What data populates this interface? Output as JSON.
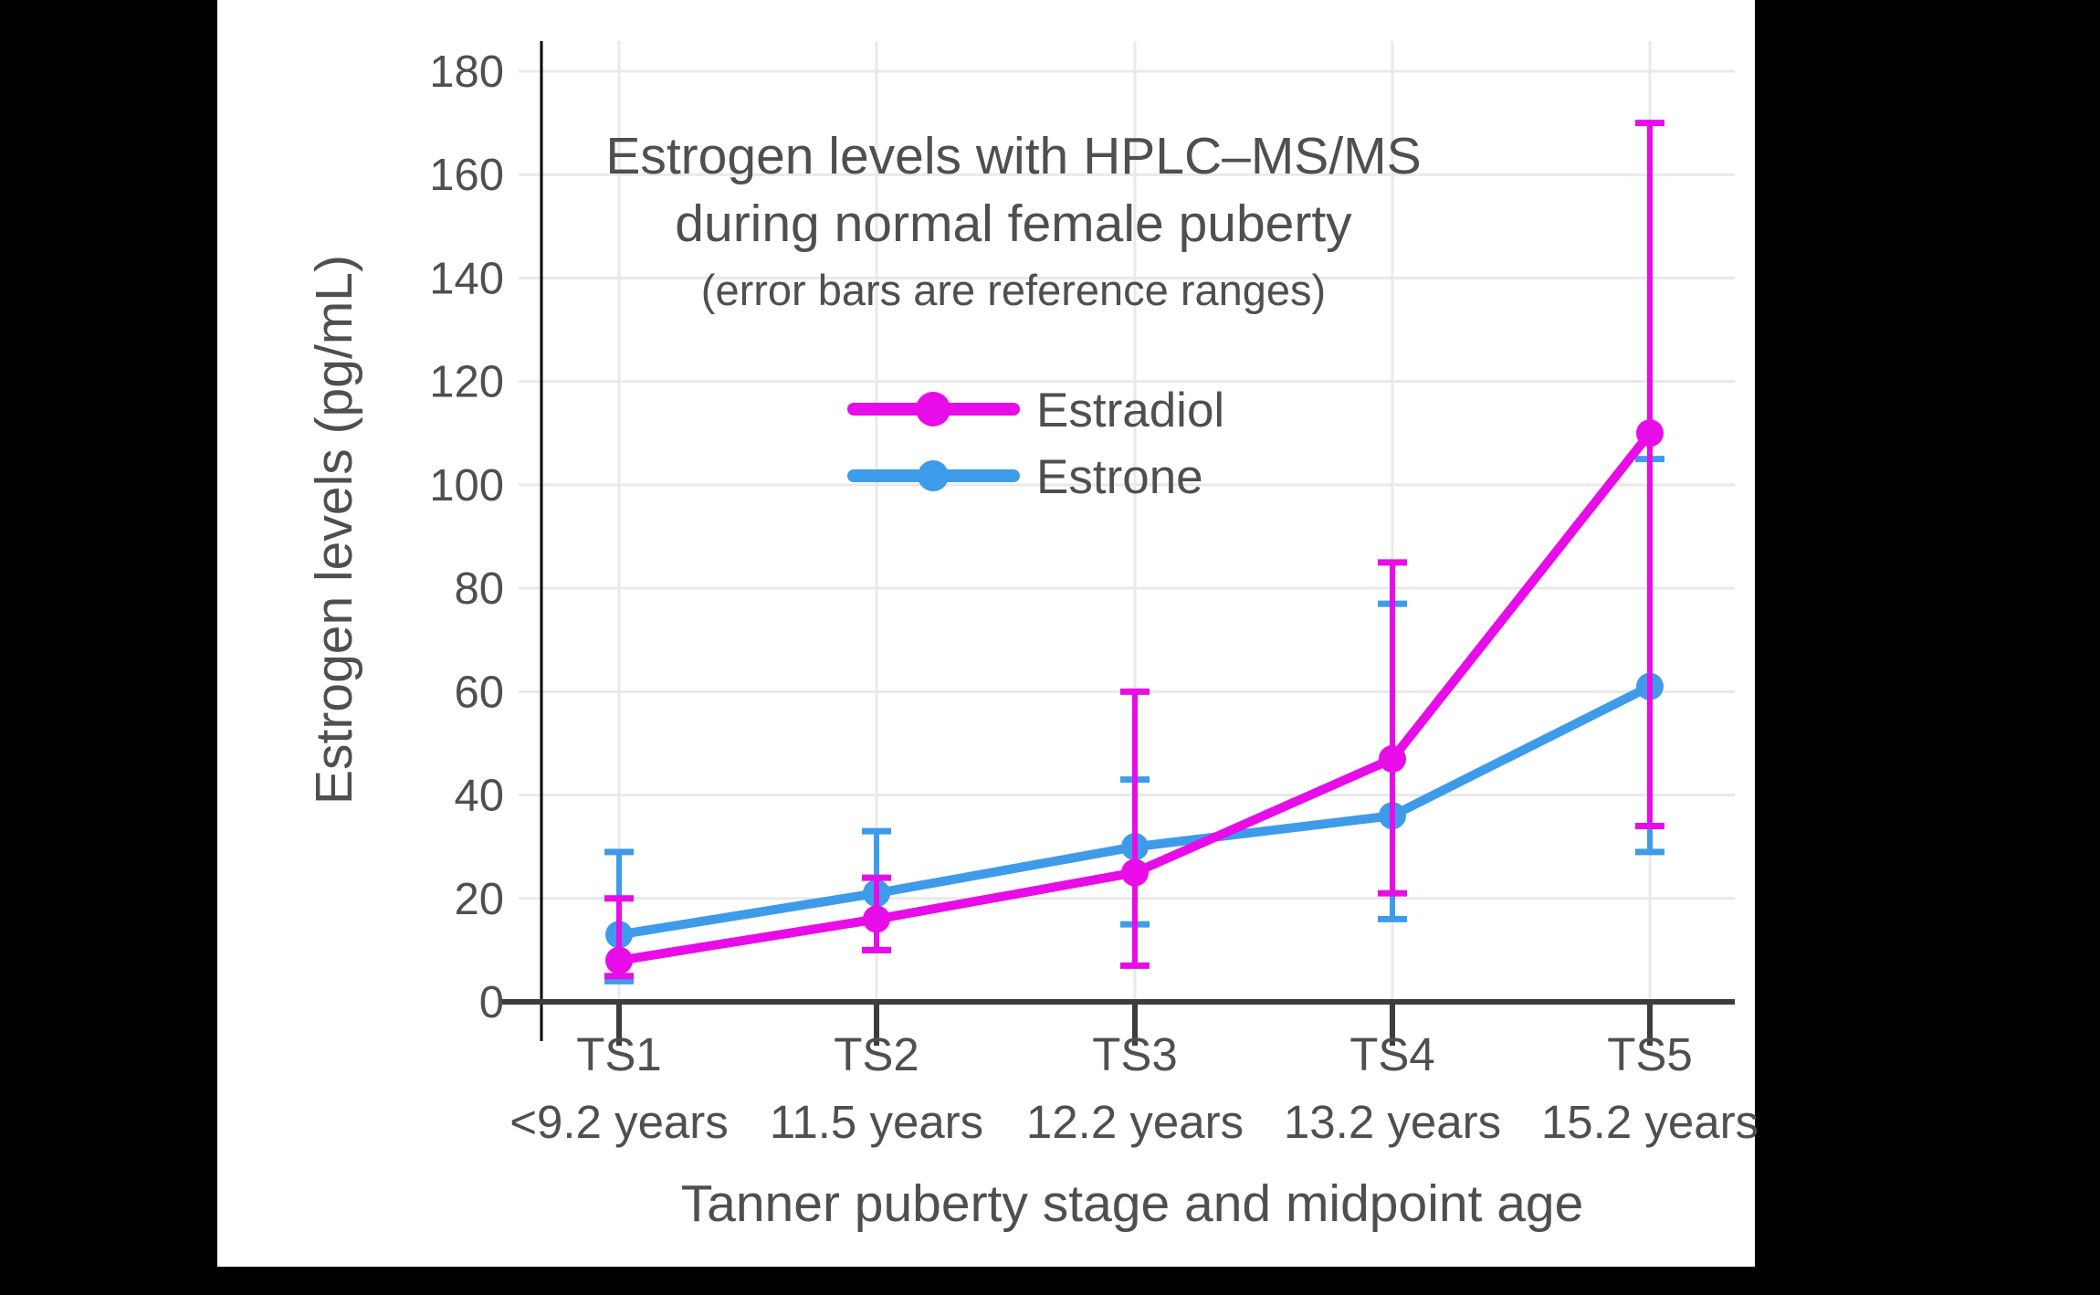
{
  "canvas": {
    "background": "#000000",
    "chart_background": "#ffffff",
    "text_color": "#4f4f4f",
    "grid_color": "#e9e9e9",
    "x_axis_color": "#3d3d3d",
    "y_axis_color": "#000000"
  },
  "legend": {
    "items": [
      {
        "label": "Estradiol",
        "color": "#E80CE8"
      },
      {
        "label": "Estrone",
        "color": "#3E9BE9"
      }
    ]
  },
  "chart_data": {
    "type": "line",
    "title": "Estrogen levels with HPLC–MS/MS during normal female puberty",
    "title_lines": [
      "Estrogen levels with HPLC–MS/MS",
      "during normal female puberty"
    ],
    "subtitle": "(error bars are reference ranges)",
    "xlabel": "Tanner puberty stage and midpoint age",
    "ylabel": "Estrogen levels (pg/mL)",
    "ylim": [
      0,
      190
    ],
    "yticks": [
      0,
      20,
      40,
      60,
      80,
      100,
      120,
      140,
      160,
      180
    ],
    "grid": true,
    "legend_position": "upper center inside plot",
    "categories": [
      "TS1",
      "TS2",
      "TS3",
      "TS4",
      "TS5"
    ],
    "category_ages": [
      "<9.2 years",
      "11.5 years",
      "12.2 years",
      "13.2 years",
      "15.2 years"
    ],
    "error_bars_meaning": "reference ranges",
    "series": [
      {
        "name": "Estrone",
        "color": "#3E9BE9",
        "values": [
          13,
          21,
          30,
          36,
          61
        ],
        "error_low": [
          4,
          10,
          15,
          16,
          29
        ],
        "error_high": [
          29,
          33,
          43,
          77,
          105
        ]
      },
      {
        "name": "Estradiol",
        "color": "#E80CE8",
        "values": [
          8,
          16,
          25,
          47,
          110
        ],
        "error_low": [
          5,
          10,
          7,
          21,
          34
        ],
        "error_high": [
          20,
          24,
          60,
          85,
          170
        ]
      }
    ]
  }
}
